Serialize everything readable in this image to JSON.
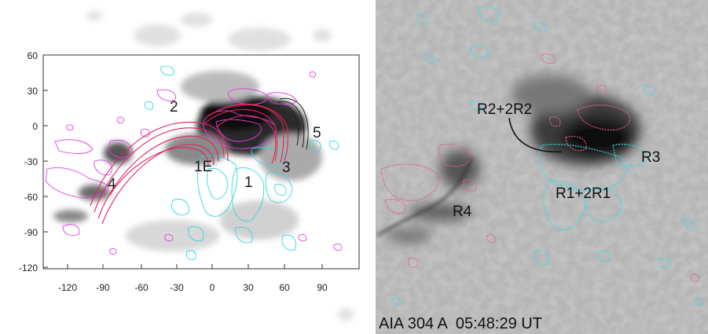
{
  "left_panel": {
    "y_ticks": [
      "60",
      "30",
      "0",
      "-30",
      "-60",
      "-90",
      "-120"
    ],
    "x_ticks": [
      "-120",
      "-90",
      "-60",
      "-30",
      "0",
      "30",
      "60",
      "90"
    ],
    "region_labels": [
      "2",
      "5",
      "1E",
      "3",
      "4",
      "1"
    ],
    "colors": {
      "field_lines": "#e0245e",
      "positive_contour": "#e040e0",
      "negative_contour": "#30d8e0",
      "image_gray": "#606060"
    }
  },
  "right_panel": {
    "region_labels": [
      "R2+2R2",
      "R3",
      "R1+2R1",
      "R4"
    ],
    "caption": "AIA 304 A  05:48:29 UT",
    "colors": {
      "positive_contour": "#e8607a",
      "negative_contour": "#30e0e8",
      "background": "#a8a8a8"
    }
  }
}
